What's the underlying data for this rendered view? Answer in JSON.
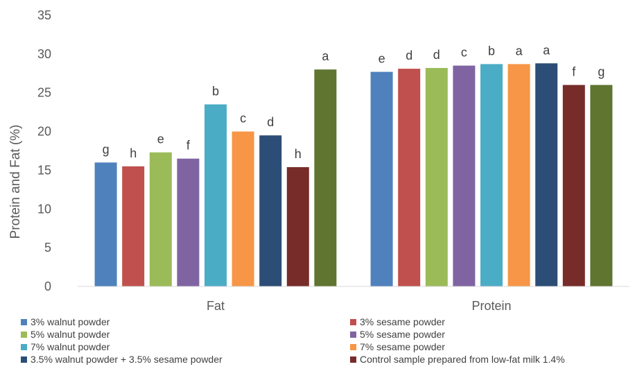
{
  "chart_data": {
    "type": "bar",
    "title": "",
    "xlabel": "",
    "ylabel": "Protein and Fat (%)",
    "ylim": [
      0,
      35
    ],
    "yticks": [
      0,
      5,
      10,
      15,
      20,
      25,
      30,
      35
    ],
    "grid": false,
    "legend_position": "bottom",
    "categories": [
      "Fat",
      "Protein"
    ],
    "series": [
      {
        "name": "3% walnut powder",
        "color": "#4f81bd",
        "values": [
          16.0,
          27.7
        ],
        "labels": [
          "g",
          "e"
        ]
      },
      {
        "name": "3% sesame powder",
        "color": "#c0504d",
        "values": [
          15.5,
          28.1
        ],
        "labels": [
          "h",
          "d"
        ]
      },
      {
        "name": "5% walnut powder",
        "color": "#9bbb59",
        "values": [
          17.3,
          28.2
        ],
        "labels": [
          "e",
          "d"
        ]
      },
      {
        "name": "5% sesame powder",
        "color": "#8064a2",
        "values": [
          16.5,
          28.5
        ],
        "labels": [
          "f",
          "c"
        ]
      },
      {
        "name": "7% walnut powder",
        "color": "#4bacc6",
        "values": [
          23.5,
          28.7
        ],
        "labels": [
          "b",
          "b"
        ]
      },
      {
        "name": "7% sesame powder",
        "color": "#f79646",
        "values": [
          20.0,
          28.7
        ],
        "labels": [
          "c",
          "a"
        ]
      },
      {
        "name": "3.5% walnut powder + 3.5% sesame powder",
        "color": "#2c4d75",
        "values": [
          19.5,
          28.8
        ],
        "labels": [
          "d",
          "a"
        ]
      },
      {
        "name": "Control sample prepared from low-fat milk 1.4%",
        "color": "#772c2a",
        "values": [
          15.4,
          26.0
        ],
        "labels": [
          "h",
          "f"
        ]
      },
      {
        "color": "#5f7530",
        "values": [
          28.0,
          26.0
        ],
        "labels": [
          "a",
          "g"
        ]
      }
    ]
  }
}
